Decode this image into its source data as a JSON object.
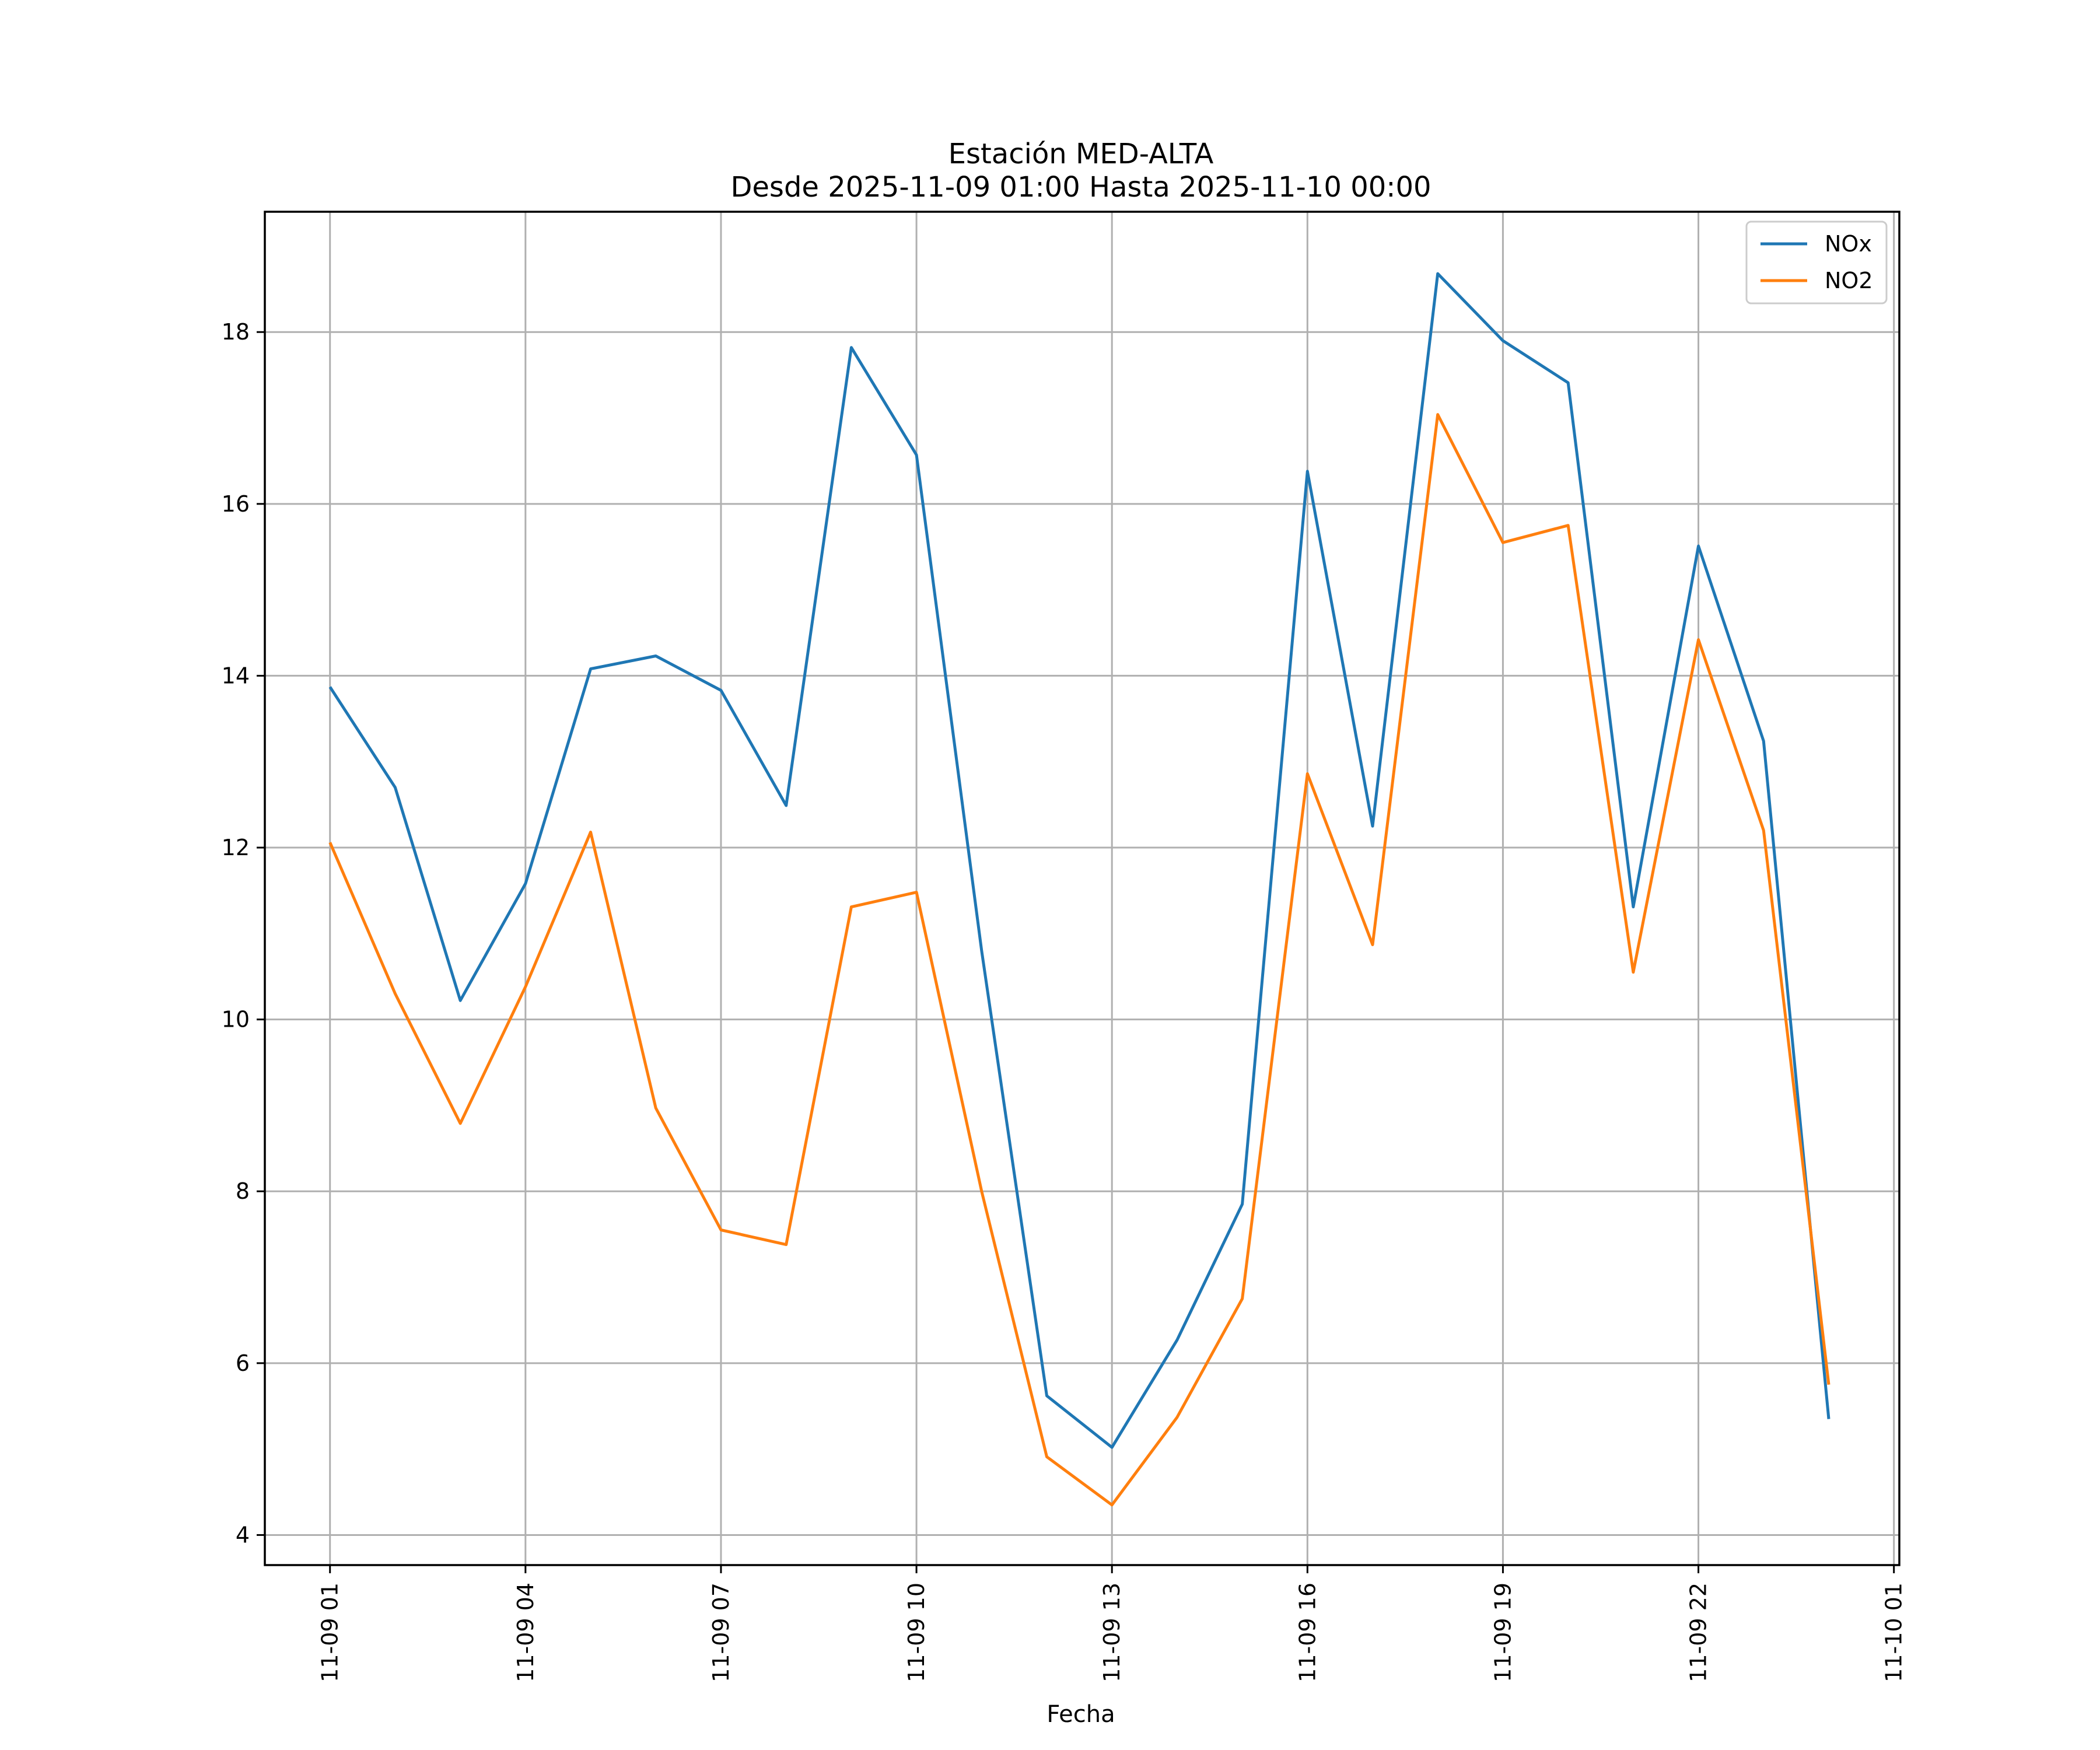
{
  "chart_data": {
    "type": "line",
    "title": "Estación MED-ALTA",
    "subtitle": "Desde 2025-11-09 01:00 Hasta 2025-11-10 00:00",
    "xlabel": "Fecha",
    "ylabel": "",
    "x": [
      "2025-11-09 01:00",
      "2025-11-09 02:00",
      "2025-11-09 03:00",
      "2025-11-09 04:00",
      "2025-11-09 05:00",
      "2025-11-09 06:00",
      "2025-11-09 07:00",
      "2025-11-09 08:00",
      "2025-11-09 09:00",
      "2025-11-09 10:00",
      "2025-11-09 11:00",
      "2025-11-09 12:00",
      "2025-11-09 13:00",
      "2025-11-09 14:00",
      "2025-11-09 15:00",
      "2025-11-09 16:00",
      "2025-11-09 17:00",
      "2025-11-09 18:00",
      "2025-11-09 19:00",
      "2025-11-09 20:00",
      "2025-11-09 21:00",
      "2025-11-09 22:00",
      "2025-11-09 23:00",
      "2025-11-10 00:00"
    ],
    "series": [
      {
        "name": "NOx",
        "color": "#1f77b4",
        "values": [
          13.87,
          12.7,
          10.22,
          11.58,
          14.08,
          14.23,
          13.83,
          12.49,
          17.82,
          16.57,
          10.8,
          5.62,
          5.02,
          6.27,
          7.85,
          16.38,
          12.25,
          18.68,
          17.9,
          17.41,
          11.31,
          15.51,
          13.24,
          5.35
        ]
      },
      {
        "name": "NO2",
        "color": "#ff7f0e",
        "values": [
          12.06,
          10.3,
          8.79,
          10.38,
          12.18,
          8.97,
          7.55,
          7.38,
          11.31,
          11.48,
          8.0,
          4.91,
          4.35,
          5.37,
          6.75,
          12.86,
          10.87,
          17.04,
          15.55,
          15.75,
          10.55,
          14.42,
          12.2,
          5.75
        ]
      }
    ],
    "xticks": [
      "11-09 01",
      "11-09 04",
      "11-09 07",
      "11-09 10",
      "11-09 13",
      "11-09 16",
      "11-09 19",
      "11-09 22",
      "11-10 01"
    ],
    "xlim": [
      "2025-11-09 00:00",
      "2025-11-10 01:05"
    ],
    "yticks": [
      "4",
      "6",
      "8",
      "10",
      "12",
      "14",
      "16",
      "18"
    ],
    "ylim": [
      3.65,
      19.4
    ],
    "grid": true,
    "legend_position": "top-right"
  }
}
